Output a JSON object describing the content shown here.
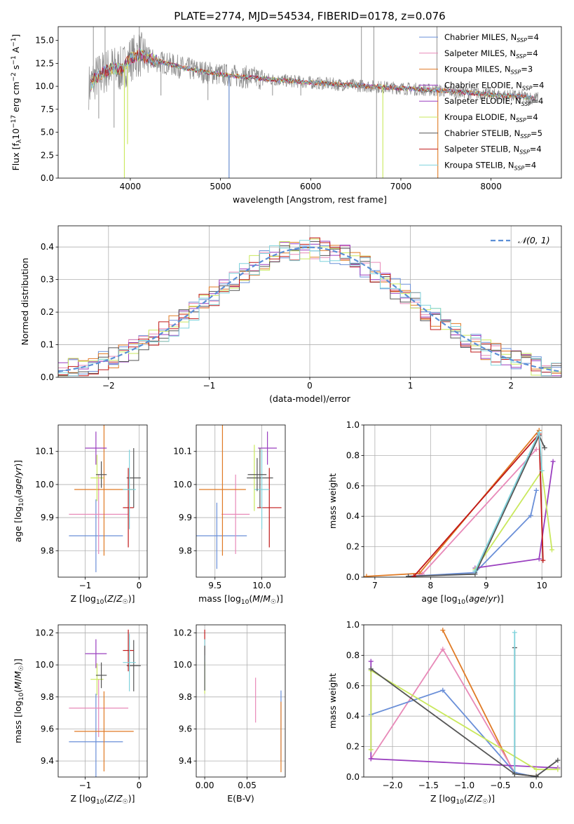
{
  "colors": {
    "Chabrier MILES": "#6a8fd8",
    "Salpeter MILES": "#e889b8",
    "Kroupa MILES": "#e07a24",
    "Chabrier ELODIE": "#9a3fbf",
    "Salpeter ELODIE": "#9a3fbf",
    "Kroupa ELODIE": "#c9e85c",
    "Chabrier STELIB": "#555555",
    "Salpeter STELIB": "#c01818",
    "Kroupa STELIB": "#7fd3dc",
    "data": "#888888",
    "grid": "#b0b0b0",
    "gaussian": "#5b8fd6"
  },
  "chart_data": [
    {
      "id": "spectrum",
      "type": "line",
      "title": "PLATE=2774, MJD=54534, FIBERID=0178, z=0.076",
      "xlabel": "wavelength [Angstrom, rest frame]",
      "ylabel_html": "Flux [f<tspan baseline-shift='-3' font-size='9'>λ</tspan>10<tspan baseline-shift='5' font-size='9'>−17</tspan> erg cm<tspan baseline-shift='5' font-size='9'>−2</tspan> s<tspan baseline-shift='5' font-size='9'>−1</tspan> A<tspan baseline-shift='5' font-size='9'>−1</tspan>]",
      "xlim": [
        3200,
        8780
      ],
      "ylim": [
        0,
        16.5
      ],
      "xticks": [
        4000,
        5000,
        6000,
        7000,
        8000
      ],
      "yticks": [
        0.0,
        2.5,
        5.0,
        7.5,
        10.0,
        12.5,
        15.0
      ],
      "grid": false,
      "legend_position": "top-right",
      "legend": [
        {
          "name": "Chabrier MILES, N",
          "sub": "SSP",
          "suffix": "=4",
          "color_key": "Chabrier MILES"
        },
        {
          "name": "Salpeter MILES, N",
          "sub": "SSP",
          "suffix": "=4",
          "color_key": "Salpeter MILES"
        },
        {
          "name": "Kroupa MILES, N",
          "sub": "SSP",
          "suffix": "=3",
          "color_key": "Kroupa MILES"
        },
        {
          "name": "Chabrier ELODIE, N",
          "sub": "SSP",
          "suffix": "=4",
          "color_key": "Chabrier ELODIE"
        },
        {
          "name": "Salpeter ELODIE, N",
          "sub": "SSP",
          "suffix": "=4",
          "color_key": "Salpeter ELODIE"
        },
        {
          "name": "Kroupa ELODIE, N",
          "sub": "SSP",
          "suffix": "=4",
          "color_key": "Kroupa ELODIE"
        },
        {
          "name": "Chabrier STELIB, N",
          "sub": "SSP",
          "suffix": "=5",
          "color_key": "Chabrier STELIB"
        },
        {
          "name": "Salpeter STELIB, N",
          "sub": "SSP",
          "suffix": "=4",
          "color_key": "Salpeter STELIB"
        },
        {
          "name": "Kroupa STELIB, N",
          "sub": "SSP",
          "suffix": "=4",
          "color_key": "Kroupa STELIB"
        }
      ],
      "continuum": [
        [
          3550,
          10.0
        ],
        [
          3600,
          10.8
        ],
        [
          3700,
          11.5
        ],
        [
          3800,
          12.0
        ],
        [
          3900,
          11.8
        ],
        [
          4000,
          13.0
        ],
        [
          4100,
          13.5
        ],
        [
          4200,
          13.0
        ],
        [
          4400,
          12.5
        ],
        [
          4600,
          12.0
        ],
        [
          4800,
          11.6
        ],
        [
          5000,
          11.3
        ],
        [
          5200,
          11.1
        ],
        [
          5500,
          10.8
        ],
        [
          6000,
          10.4
        ],
        [
          6500,
          10.1
        ],
        [
          7000,
          9.8
        ],
        [
          7500,
          9.5
        ],
        [
          8000,
          9.1
        ],
        [
          8300,
          8.9
        ],
        [
          8500,
          8.7
        ]
      ],
      "data_spikes": [
        [
          3590,
          16.5
        ],
        [
          3650,
          6.5
        ],
        [
          3720,
          16.5
        ],
        [
          3820,
          5.5
        ],
        [
          3935,
          4.5
        ],
        [
          3970,
          5.0
        ],
        [
          4100,
          16.5
        ],
        [
          4340,
          9.0
        ],
        [
          4861,
          8.5
        ],
        [
          5095,
          0
        ],
        [
          5577,
          9.0
        ],
        [
          5890,
          9.0
        ],
        [
          6300,
          9.5
        ],
        [
          6563,
          16.5
        ],
        [
          6700,
          16.5
        ],
        [
          6730,
          0
        ],
        [
          7400,
          16.5
        ]
      ],
      "model_dips": [
        [
          3934,
          0
        ],
        [
          3969,
          3.7
        ],
        [
          5095,
          0
        ],
        [
          6800,
          0
        ],
        [
          7410,
          0
        ]
      ]
    },
    {
      "id": "residuals",
      "type": "bar",
      "xlabel": "(data-model)/error",
      "ylabel": "Normed distribution",
      "xlim": [
        -2.5,
        2.5
      ],
      "ylim": [
        0,
        0.465
      ],
      "xticks": [
        -2,
        -1,
        0,
        1,
        2
      ],
      "yticks": [
        0.0,
        0.1,
        0.2,
        0.3,
        0.4
      ],
      "grid": true,
      "legend_position": "top-right",
      "legend_label": "𝒩(0, 1)",
      "bin_width": 0.1
    },
    {
      "id": "age_vs_Z",
      "type": "scatter",
      "xlabel_html": "Z [log<tspan baseline-shift='-3' font-size='9'>10</tspan>(<tspan font-style='italic'>Z</tspan>/<tspan font-style='italic'>Z</tspan><tspan baseline-shift='-3' font-size='9'>☉</tspan>)]",
      "ylabel_html": "age  [log<tspan baseline-shift='-3' font-size='9'>10</tspan>(<tspan font-style='italic'>age</tspan>/<tspan font-style='italic'>yr</tspan>)]",
      "xlim": [
        -1.5,
        0.15
      ],
      "ylim": [
        9.72,
        10.18
      ],
      "xticks": [
        -1,
        0
      ],
      "yticks": [
        9.8,
        9.9,
        10.0,
        10.1
      ],
      "grid": true,
      "points": [
        {
          "k": "Chabrier MILES",
          "x": -0.8,
          "xe": 0.5,
          "y": 9.845,
          "ye": 0.11
        },
        {
          "k": "Salpeter MILES",
          "x": -0.75,
          "xe": 0.55,
          "y": 9.91,
          "ye": 0.12
        },
        {
          "k": "Kroupa MILES",
          "x": -0.65,
          "xe": 0.55,
          "y": 9.985,
          "ye": 0.2
        },
        {
          "k": "Chabrier ELODIE",
          "x": -0.8,
          "xe": 0.2,
          "y": 10.11,
          "ye": 0.05
        },
        {
          "k": "Kroupa ELODIE",
          "x": -0.78,
          "xe": 0.12,
          "y": 10.02,
          "ye": 0.07
        },
        {
          "k": "Chabrier STELIB",
          "x": -0.1,
          "xe": 0.13,
          "y": 10.02,
          "ye": 0.09
        },
        {
          "k": "Salpeter STELIB",
          "x": -0.2,
          "xe": 0.1,
          "y": 9.93,
          "ye": 0.12
        },
        {
          "k": "Kroupa STELIB",
          "x": -0.18,
          "xe": 0.12,
          "y": 9.985,
          "ye": 0.12
        },
        {
          "k": "Chabrier STELIB",
          "x": -0.7,
          "xe": 0.1,
          "y": 10.03,
          "ye": 0.04
        }
      ]
    },
    {
      "id": "age_vs_mass",
      "type": "scatter",
      "xlabel_html": "mass [log<tspan baseline-shift='-3' font-size='9'>10</tspan>(<tspan font-style='italic'>M</tspan>/<tspan font-style='italic'>M</tspan><tspan baseline-shift='-3' font-size='9'>☉</tspan>)]",
      "xlim": [
        9.3,
        10.25
      ],
      "ylim": [
        9.72,
        10.18
      ],
      "xticks": [
        9.5,
        10.0
      ],
      "yticks": [
        9.8,
        9.9,
        10.0,
        10.1
      ],
      "grid": true,
      "points": [
        {
          "k": "Chabrier MILES",
          "x": 9.52,
          "xe": 0.32,
          "y": 9.845,
          "ye": 0.1
        },
        {
          "k": "Salpeter MILES",
          "x": 9.72,
          "xe": 0.15,
          "y": 9.91,
          "ye": 0.12
        },
        {
          "k": "Kroupa MILES",
          "x": 9.58,
          "xe": 0.25,
          "y": 9.985,
          "ye": 0.2
        },
        {
          "k": "Chabrier ELODIE",
          "x": 10.06,
          "xe": 0.1,
          "y": 10.11,
          "ye": 0.05
        },
        {
          "k": "Kroupa ELODIE",
          "x": 9.92,
          "xe": 0.05,
          "y": 10.02,
          "ye": 0.1
        },
        {
          "k": "Chabrier STELIB",
          "x": 9.98,
          "xe": 0.14,
          "y": 10.02,
          "ye": 0.09
        },
        {
          "k": "Salpeter STELIB",
          "x": 10.08,
          "xe": 0.13,
          "y": 9.93,
          "ye": 0.12
        },
        {
          "k": "Kroupa STELIB",
          "x": 10.0,
          "xe": 0.08,
          "y": 9.985,
          "ye": 0.12
        },
        {
          "k": "Chabrier STELIB",
          "x": 9.95,
          "xe": 0.1,
          "y": 10.03,
          "ye": 0.05
        }
      ]
    },
    {
      "id": "weight_vs_age",
      "type": "line",
      "xlabel_html": "age  [log<tspan baseline-shift='-3' font-size='9'>10</tspan>(<tspan font-style='italic'>age</tspan>/<tspan font-style='italic'>yr</tspan>)]",
      "ylabel": "mass weight",
      "xlim": [
        6.8,
        10.35
      ],
      "ylim": [
        0,
        1.0
      ],
      "xticks": [
        7,
        8,
        9,
        10
      ],
      "yticks": [
        0.0,
        0.2,
        0.4,
        0.6,
        0.8,
        1.0
      ],
      "grid": true,
      "series": [
        {
          "k": "Kroupa MILES",
          "points": [
            [
              6.85,
              0.005
            ],
            [
              7.8,
              0.025
            ],
            [
              9.95,
              0.965
            ]
          ]
        },
        {
          "k": "Salpeter MILES",
          "points": [
            [
              7.7,
              0.005
            ],
            [
              7.85,
              0.02
            ],
            [
              9.9,
              0.84
            ]
          ]
        },
        {
          "k": "Chabrier MILES",
          "points": [
            [
              7.6,
              0.005
            ],
            [
              8.8,
              0.03
            ],
            [
              9.8,
              0.405
            ],
            [
              9.9,
              0.57
            ]
          ]
        },
        {
          "k": "Chabrier ELODIE",
          "points": [
            [
              8.8,
              0.06
            ],
            [
              9.95,
              0.12
            ],
            [
              10.2,
              0.76
            ]
          ]
        },
        {
          "k": "Kroupa ELODIE",
          "points": [
            [
              8.8,
              0.05
            ],
            [
              10.0,
              0.7
            ],
            [
              10.18,
              0.18
            ]
          ]
        },
        {
          "k": "Chabrier STELIB",
          "points": [
            [
              7.6,
              0.005
            ],
            [
              8.8,
              0.02
            ],
            [
              9.95,
              0.93
            ],
            [
              10.05,
              0.85
            ]
          ]
        },
        {
          "k": "Salpeter STELIB",
          "points": [
            [
              7.7,
              0.005
            ],
            [
              9.95,
              0.94
            ],
            [
              10.02,
              0.11
            ]
          ]
        },
        {
          "k": "Kroupa STELIB",
          "points": [
            [
              8.8,
              0.04
            ],
            [
              9.95,
              0.95
            ],
            [
              10.0,
              0.7
            ]
          ]
        }
      ]
    },
    {
      "id": "mass_vs_Z",
      "type": "scatter",
      "xlabel_html": "Z [log<tspan baseline-shift='-3' font-size='9'>10</tspan>(<tspan font-style='italic'>Z</tspan>/<tspan font-style='italic'>Z</tspan><tspan baseline-shift='-3' font-size='9'>☉</tspan>)]",
      "ylabel_html": "mass [log<tspan baseline-shift='-3' font-size='9'>10</tspan>(<tspan font-style='italic'>M</tspan>/<tspan font-style='italic'>M</tspan><tspan baseline-shift='-3' font-size='9'>☉</tspan>)]",
      "xlim": [
        -1.5,
        0.15
      ],
      "ylim": [
        9.3,
        10.25
      ],
      "xticks": [
        -1,
        0
      ],
      "yticks": [
        9.4,
        9.6,
        9.8,
        10.0,
        10.2
      ],
      "grid": true,
      "points": [
        {
          "k": "Chabrier MILES",
          "x": -0.8,
          "xe": 0.5,
          "y": 9.52,
          "ye": 0.3
        },
        {
          "k": "Salpeter MILES",
          "x": -0.75,
          "xe": 0.55,
          "y": 9.73,
          "ye": 0.18
        },
        {
          "k": "Kroupa MILES",
          "x": -0.65,
          "xe": 0.55,
          "y": 9.585,
          "ye": 0.25
        },
        {
          "k": "Chabrier ELODIE",
          "x": -0.8,
          "xe": 0.2,
          "y": 10.07,
          "ye": 0.09
        },
        {
          "k": "Kroupa ELODIE",
          "x": -0.78,
          "xe": 0.12,
          "y": 9.91,
          "ye": 0.1
        },
        {
          "k": "Chabrier STELIB",
          "x": -0.1,
          "xe": 0.13,
          "y": 9.995,
          "ye": 0.16
        },
        {
          "k": "Salpeter STELIB",
          "x": -0.2,
          "xe": 0.1,
          "y": 10.09,
          "ye": 0.13
        },
        {
          "k": "Kroupa STELIB",
          "x": -0.18,
          "xe": 0.12,
          "y": 10.015,
          "ye": 0.18
        },
        {
          "k": "Chabrier STELIB",
          "x": -0.7,
          "xe": 0.1,
          "y": 9.935,
          "ye": 0.08
        }
      ]
    },
    {
      "id": "mass_vs_ebv",
      "type": "scatter",
      "xlabel": "E(B-V)",
      "xlim": [
        -0.01,
        0.095
      ],
      "ylim": [
        9.3,
        10.25
      ],
      "xticks": [
        0.0,
        0.05
      ],
      "yticks": [
        9.4,
        9.6,
        9.8,
        10.0,
        10.2
      ],
      "grid": true,
      "points": [
        {
          "k": "Chabrier MILES",
          "x": 0.09,
          "xe": 0,
          "y": 9.62,
          "ye": 0.22
        },
        {
          "k": "Salpeter MILES",
          "x": 0.06,
          "xe": 0,
          "y": 9.78,
          "ye": 0.14
        },
        {
          "k": "Kroupa MILES",
          "x": 0.09,
          "xe": 0,
          "y": 9.55,
          "ye": 0.22
        },
        {
          "k": "Salpeter STELIB",
          "x": 0.0,
          "xe": 0,
          "y": 10.14,
          "ye": 0.08
        },
        {
          "k": "Kroupa STELIB",
          "x": 0.0,
          "xe": 0,
          "y": 10.0,
          "ye": 0.16
        },
        {
          "k": "Kroupa ELODIE",
          "x": 0.0,
          "xe": 0,
          "y": 9.92,
          "ye": 0.1
        },
        {
          "k": "Chabrier STELIB",
          "x": 0.0,
          "xe": 0,
          "y": 9.98,
          "ye": 0.14
        }
      ]
    },
    {
      "id": "weight_vs_Z",
      "type": "line",
      "xlabel_html": "Z [log<tspan baseline-shift='-3' font-size='9'>10</tspan>(<tspan font-style='italic'>Z</tspan>/<tspan font-style='italic'>Z</tspan><tspan baseline-shift='-3' font-size='9'>☉</tspan>)]",
      "ylabel": "mass weight",
      "xlim": [
        -2.4,
        0.35
      ],
      "ylim": [
        0,
        1.0
      ],
      "xticks": [
        -2.0,
        -1.5,
        -1.0,
        -0.5,
        0.0
      ],
      "yticks": [
        0.0,
        0.2,
        0.4,
        0.6,
        0.8,
        1.0
      ],
      "grid": true,
      "series": [
        {
          "k": "Kroupa MILES",
          "points": [
            [
              -1.3,
              0.965
            ],
            [
              -0.3,
              0.02
            ],
            [
              0.0,
              0.005
            ]
          ]
        },
        {
          "k": "Salpeter MILES",
          "points": [
            [
              -2.3,
              0.12
            ],
            [
              -1.3,
              0.84
            ],
            [
              -0.3,
              0.03
            ]
          ]
        },
        {
          "k": "Chabrier MILES",
          "points": [
            [
              -2.3,
              0.41
            ],
            [
              -1.3,
              0.57
            ],
            [
              -0.3,
              0.03
            ],
            [
              0.0,
              0.0
            ]
          ]
        },
        {
          "k": "Chabrier ELODIE",
          "points": [
            [
              -2.3,
              0.76
            ],
            [
              -2.3,
              0.12
            ],
            [
              0.3,
              0.06
            ]
          ]
        },
        {
          "k": "Kroupa ELODIE",
          "points": [
            [
              -2.3,
              0.18
            ],
            [
              -2.3,
              0.7
            ],
            [
              0.0,
              0.05
            ],
            [
              0.3,
              0.05
            ]
          ]
        },
        {
          "k": "Chabrier STELIB",
          "points": [
            [
              -0.3,
              0.85
            ],
            [
              -0.3,
              0.02
            ],
            [
              0.0,
              0.005
            ],
            [
              0.3,
              0.11
            ]
          ]
        },
        {
          "k": "Kroupa STELIB",
          "points": [
            [
              -0.3,
              0.95
            ],
            [
              -0.3,
              0.02
            ]
          ]
        },
        {
          "k": "Chabrier STELIB",
          "points": [
            [
              -2.3,
              0.71
            ],
            [
              -0.3,
              0.02
            ]
          ]
        }
      ]
    }
  ]
}
